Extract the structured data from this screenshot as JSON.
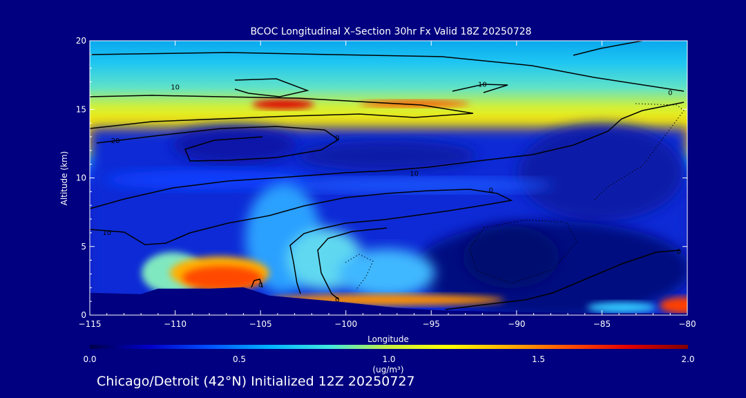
{
  "chart_data": {
    "type": "heatmap",
    "title": "BCOC Longitudinal X–Section 30hr  Fx Valid 18Z 20250728",
    "xlabel": "Longitude",
    "ylabel": "Altitude (km)",
    "xlim": [
      -115,
      -80
    ],
    "ylim": [
      0,
      20
    ],
    "x_ticks": [
      -115,
      -110,
      -105,
      -100,
      -95,
      -90,
      -85,
      -80
    ],
    "x_tick_labels": [
      "−115",
      "−110",
      "−105",
      "−100",
      "−95",
      "−90",
      "−85",
      "−80"
    ],
    "y_ticks": [
      0,
      5,
      10,
      15,
      20
    ],
    "y_tick_labels": [
      "0",
      "5",
      "10",
      "15",
      "20"
    ],
    "colorbar": {
      "min": 0.0,
      "max": 2.0,
      "tick_values": [
        0.0,
        0.5,
        1.0,
        1.5,
        2.0
      ],
      "tick_labels": [
        "0.0",
        "0.5",
        "1.0",
        "1.5",
        "2.0"
      ],
      "unit_label": "(ug/m³)",
      "stops": [
        "#00004c",
        "#0000c8",
        "#0050ff",
        "#00b4ff",
        "#40e8e0",
        "#c8f040",
        "#ffff00",
        "#ffb000",
        "#ff5000",
        "#e00000",
        "#800000"
      ]
    },
    "terrain_km": [
      [
        -115,
        1.6
      ],
      [
        -112,
        1.5
      ],
      [
        -111,
        1.9
      ],
      [
        -108,
        1.9
      ],
      [
        -106,
        2.0
      ],
      [
        -104.5,
        1.4
      ],
      [
        -100,
        0.9
      ],
      [
        -97,
        0.5
      ],
      [
        -94,
        0.3
      ],
      [
        -90,
        0.2
      ],
      [
        -85,
        0.1
      ],
      [
        -80,
        0.1
      ]
    ],
    "concentration_features": [
      {
        "name": "tropopause-layer",
        "lon_range": [
          -115,
          -80
        ],
        "alt_center": 15.5,
        "value": 1.4
      },
      {
        "name": "upper-core",
        "lon_center": -104,
        "alt_center": 15,
        "value": 1.7
      },
      {
        "name": "plume-core",
        "lon_center": -107.5,
        "alt_center": 3,
        "value": 1.6
      },
      {
        "name": "lowlevel-east",
        "lon_center": -80.5,
        "alt_center": 0.6,
        "value": 1.7
      }
    ],
    "contour_labels": [
      {
        "text": "10",
        "lon": -110,
        "alt": 16.6
      },
      {
        "text": "10",
        "lon": -92,
        "alt": 16.8
      },
      {
        "text": "0",
        "lon": -81,
        "alt": 16.2
      },
      {
        "text": "20",
        "lon": -113.5,
        "alt": 12.7
      },
      {
        "text": "0",
        "lon": -100.5,
        "alt": 12.9
      },
      {
        "text": "10",
        "lon": -96,
        "alt": 10.3
      },
      {
        "text": "0",
        "lon": -91.5,
        "alt": 9.1
      },
      {
        "text": "10",
        "lon": -114,
        "alt": 6.0
      },
      {
        "text": "0",
        "lon": -80.5,
        "alt": 4.6
      },
      {
        "text": "0",
        "lon": -105,
        "alt": 2.2
      },
      {
        "text": "0",
        "lon": -100.5,
        "alt": 1.1
      }
    ]
  },
  "footer": {
    "text": "Chicago/Detroit (42°N) Initialized 12Z 20250727"
  }
}
